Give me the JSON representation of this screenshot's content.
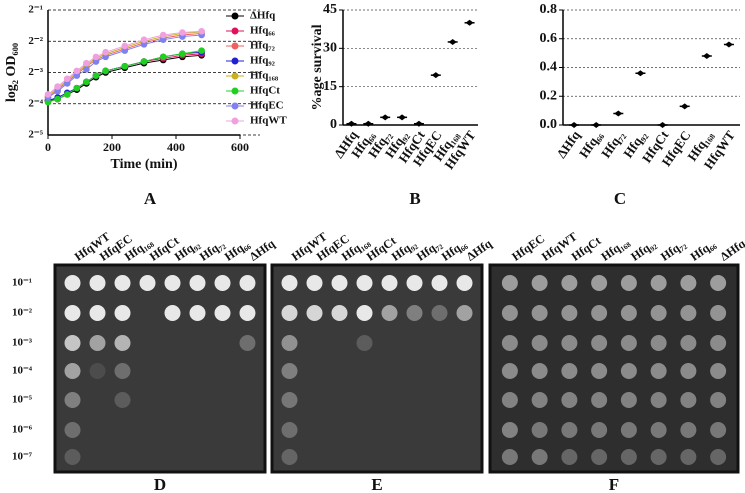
{
  "chart_data": [
    {
      "type": "line",
      "panel": "A",
      "ylabel": "log₂ OD₆₀₀",
      "xlabel": "Time (min)",
      "x": [
        0,
        30,
        60,
        90,
        120,
        150,
        180,
        240,
        300,
        360,
        420,
        480
      ],
      "xlim": [
        0,
        600
      ],
      "xticks": [
        0,
        200,
        400,
        600
      ],
      "ylim": [
        -5,
        -1
      ],
      "yticks": [
        {
          "value": -1,
          "label": "2⁻¹"
        },
        {
          "value": -2,
          "label": "2⁻²"
        },
        {
          "value": -3,
          "label": "2⁻³"
        },
        {
          "value": -4,
          "label": "2⁻⁴"
        },
        {
          "value": -5,
          "label": "2⁻⁵"
        }
      ],
      "grid": true,
      "legend": "upper right",
      "series": [
        {
          "name": "ΔHfq",
          "color": "#000000",
          "values": [
            -3.9,
            -3.85,
            -3.7,
            -3.55,
            -3.35,
            -3.15,
            -3.0,
            -2.85,
            -2.7,
            -2.6,
            -2.5,
            -2.45
          ]
        },
        {
          "name": "Hfq₆₆",
          "color": "#e0105a",
          "values": [
            -3.9,
            -3.85,
            -3.7,
            -3.5,
            -3.3,
            -3.1,
            -2.95,
            -2.8,
            -2.65,
            -2.55,
            -2.45,
            -2.4
          ]
        },
        {
          "name": "Hfq₇₂",
          "color": "#f06060",
          "values": [
            -3.8,
            -3.55,
            -3.3,
            -3.05,
            -2.8,
            -2.6,
            -2.45,
            -2.25,
            -2.05,
            -1.9,
            -1.8,
            -1.75
          ]
        },
        {
          "name": "Hfq₉₂",
          "color": "#2020d0",
          "values": [
            -3.9,
            -3.8,
            -3.65,
            -3.5,
            -3.3,
            -3.1,
            -2.95,
            -2.8,
            -2.65,
            -2.5,
            -2.4,
            -2.35
          ]
        },
        {
          "name": "Hfq₁₆₈",
          "color": "#c8b020",
          "values": [
            -3.75,
            -3.5,
            -3.25,
            -3.0,
            -2.75,
            -2.55,
            -2.4,
            -2.2,
            -2.0,
            -1.85,
            -1.75,
            -1.7
          ]
        },
        {
          "name": "HfqCt",
          "color": "#20d020",
          "values": [
            -3.95,
            -3.85,
            -3.7,
            -3.5,
            -3.3,
            -3.1,
            -2.95,
            -2.8,
            -2.65,
            -2.5,
            -2.4,
            -2.3
          ]
        },
        {
          "name": "HfqEC",
          "color": "#8080f0",
          "values": [
            -3.8,
            -3.6,
            -3.35,
            -3.1,
            -2.9,
            -2.65,
            -2.5,
            -2.3,
            -2.1,
            -1.95,
            -1.85,
            -1.8
          ]
        },
        {
          "name": "HfqWT",
          "color": "#f0a0e0",
          "values": [
            -3.7,
            -3.45,
            -3.2,
            -2.95,
            -2.7,
            -2.5,
            -2.35,
            -2.15,
            -1.95,
            -1.8,
            -1.72,
            -1.68
          ]
        }
      ]
    },
    {
      "type": "dot",
      "panel": "B",
      "ylabel": "%age survival",
      "categories": [
        "ΔHfq",
        "Hfq₆₆",
        "Hfq₇₂",
        "Hfq₉₂",
        "HfqCt",
        "HfqEC",
        "Hfq₁₆₈",
        "HfqWT"
      ],
      "values": [
        0.5,
        0.5,
        3,
        3,
        0.5,
        19.5,
        32.5,
        40
      ],
      "color": "#000000",
      "ylim": [
        0,
        45
      ],
      "yticks": [
        0,
        15,
        30,
        45
      ],
      "grid": true
    },
    {
      "type": "dot",
      "panel": "C",
      "categories": [
        "ΔHfq",
        "Hfq₆₆",
        "Hfq₇₂",
        "Hfq₉₂",
        "HfqCt",
        "HfqEC",
        "Hfq₁₆₈",
        "HfqWT"
      ],
      "values": [
        0,
        0,
        0.08,
        0.36,
        0,
        0.13,
        0.48,
        0.56
      ],
      "color": "#000000",
      "ylim": [
        0,
        0.8
      ],
      "yticks": [
        {
          "value": 0,
          "label": "0.0"
        },
        0.2,
        0.4,
        0.6,
        0.8
      ],
      "grid": true
    }
  ],
  "dilutions": [
    "10⁻¹",
    "10⁻²",
    "10⁻³",
    "10⁻⁴",
    "10⁻⁵",
    "10⁻⁶",
    "10⁻⁷"
  ],
  "plates": [
    {
      "panel": "D",
      "columns": [
        "HfqWT",
        "HfqEC",
        "Hfq₁₆₈",
        "HfqCt",
        "Hfq₉₂",
        "Hfq₇₂",
        "Hfq₆₆",
        "ΔHfq"
      ]
    },
    {
      "panel": "E",
      "columns": [
        "HfqWT",
        "HfqEC",
        "Hfq₁₆₈",
        "HfqCt",
        "Hfq₉₂",
        "Hfq₇₂",
        "Hfq₆₆",
        "ΔHfq"
      ]
    },
    {
      "panel": "F",
      "columns": [
        "HfqEC",
        "HfqWT",
        "HfqCt",
        "Hfq₁₆₈",
        "Hfq₉₂",
        "Hfq₇₂",
        "Hfq₆₆",
        "ΔHfq"
      ]
    }
  ]
}
